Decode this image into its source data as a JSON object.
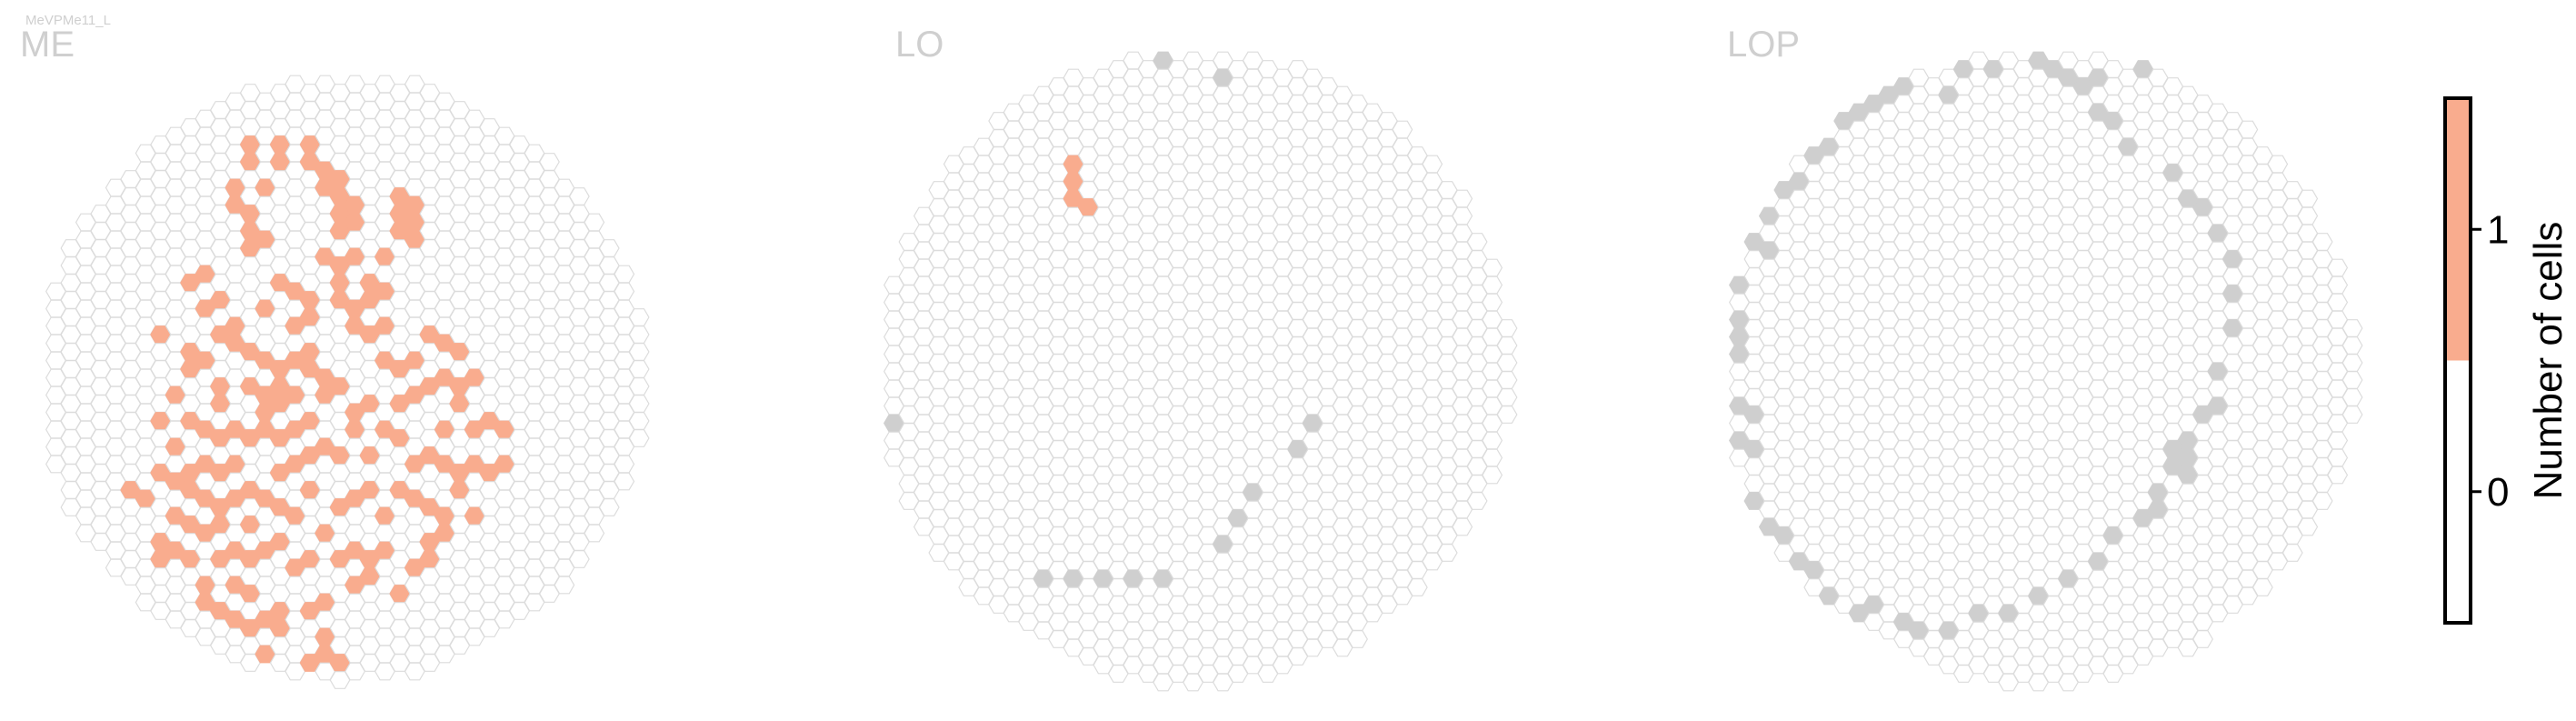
{
  "cell_type": "MeVPMe11_L",
  "colors": {
    "present": "#F9AC8E",
    "absent_fill": "#ffffff",
    "hex_outline": "#dcdcdc",
    "edge_column": "#cfcfcf",
    "title": "#cfcfcf",
    "colorbar_border": "#000000"
  },
  "chart_data": [
    {
      "type": "heatmap",
      "subtype": "hexagonal column map",
      "title": "ME",
      "lattice": "hex columns, offset by half step on alternating columns",
      "occupied_columns": [
        [
          14,
          4
        ],
        [
          14,
          5
        ],
        [
          16,
          4
        ],
        [
          16,
          5
        ],
        [
          13,
          6
        ],
        [
          15,
          6
        ],
        [
          13,
          7
        ],
        [
          14,
          8
        ],
        [
          14,
          9
        ],
        [
          15,
          9
        ],
        [
          14,
          10
        ],
        [
          18,
          4
        ],
        [
          18,
          5
        ],
        [
          19,
          5
        ],
        [
          19,
          6
        ],
        [
          20,
          6
        ],
        [
          20,
          7
        ],
        [
          21,
          7
        ],
        [
          20,
          8
        ],
        [
          21,
          8
        ],
        [
          20,
          9
        ],
        [
          21,
          10
        ],
        [
          24,
          7
        ],
        [
          25,
          7
        ],
        [
          24,
          8
        ],
        [
          25,
          8
        ],
        [
          24,
          9
        ],
        [
          25,
          9
        ],
        [
          23,
          10
        ],
        [
          19,
          10
        ],
        [
          20,
          11
        ],
        [
          20,
          12
        ],
        [
          20,
          13
        ],
        [
          21,
          13
        ],
        [
          21,
          14
        ],
        [
          22,
          12
        ],
        [
          22,
          13
        ],
        [
          23,
          12
        ],
        [
          23,
          14
        ],
        [
          10,
          12
        ],
        [
          11,
          11
        ],
        [
          11,
          13
        ],
        [
          12,
          13
        ],
        [
          13,
          14
        ],
        [
          15,
          13
        ],
        [
          16,
          12
        ],
        [
          17,
          12
        ],
        [
          18,
          13
        ],
        [
          17,
          14
        ],
        [
          18,
          14
        ],
        [
          8,
          15
        ],
        [
          10,
          16
        ],
        [
          11,
          16
        ],
        [
          12,
          15
        ],
        [
          13,
          15
        ],
        [
          14,
          16
        ],
        [
          15,
          16
        ],
        [
          16,
          17
        ],
        [
          17,
          16
        ],
        [
          18,
          16
        ],
        [
          18,
          17
        ],
        [
          19,
          17
        ],
        [
          9,
          18
        ],
        [
          10,
          17
        ],
        [
          12,
          18
        ],
        [
          14,
          18
        ],
        [
          15,
          18
        ],
        [
          16,
          18
        ],
        [
          17,
          18
        ],
        [
          15,
          19
        ],
        [
          16,
          19
        ],
        [
          19,
          18
        ],
        [
          20,
          18
        ],
        [
          22,
          15
        ],
        [
          23,
          16
        ],
        [
          24,
          17
        ],
        [
          25,
          16
        ],
        [
          26,
          15
        ],
        [
          27,
          15
        ],
        [
          28,
          16
        ],
        [
          27,
          17
        ],
        [
          28,
          18
        ],
        [
          29,
          17
        ],
        [
          28,
          19
        ],
        [
          25,
          18
        ],
        [
          26,
          18
        ],
        [
          24,
          19
        ],
        [
          27,
          20
        ],
        [
          29,
          20
        ],
        [
          30,
          20
        ],
        [
          31,
          20
        ],
        [
          21,
          19
        ],
        [
          22,
          19
        ],
        [
          23,
          20
        ],
        [
          21,
          20
        ],
        [
          8,
          20
        ],
        [
          9,
          21
        ],
        [
          10,
          20
        ],
        [
          11,
          20
        ],
        [
          12,
          19
        ],
        [
          12,
          21
        ],
        [
          13,
          20
        ],
        [
          13,
          22
        ],
        [
          14,
          21
        ],
        [
          15,
          20
        ],
        [
          16,
          21
        ],
        [
          17,
          20
        ],
        [
          18,
          20
        ],
        [
          19,
          21
        ],
        [
          17,
          22
        ],
        [
          18,
          22
        ],
        [
          20,
          22
        ],
        [
          22,
          22
        ],
        [
          24,
          21
        ],
        [
          25,
          22
        ],
        [
          26,
          22
        ],
        [
          27,
          22
        ],
        [
          28,
          23
        ],
        [
          29,
          22
        ],
        [
          30,
          23
        ],
        [
          31,
          22
        ],
        [
          6,
          24
        ],
        [
          7,
          24
        ],
        [
          8,
          23
        ],
        [
          9,
          23
        ],
        [
          10,
          23
        ],
        [
          11,
          22
        ],
        [
          11,
          24
        ],
        [
          9,
          25
        ],
        [
          10,
          24
        ],
        [
          10,
          26
        ],
        [
          11,
          26
        ],
        [
          12,
          25
        ],
        [
          12,
          23
        ],
        [
          13,
          24
        ],
        [
          14,
          24
        ],
        [
          15,
          24
        ],
        [
          16,
          23
        ],
        [
          16,
          25
        ],
        [
          17,
          25
        ],
        [
          18,
          24
        ],
        [
          19,
          26
        ],
        [
          20,
          25
        ],
        [
          21,
          24
        ],
        [
          22,
          24
        ],
        [
          23,
          25
        ],
        [
          24,
          24
        ],
        [
          25,
          24
        ],
        [
          26,
          25
        ],
        [
          27,
          25
        ],
        [
          28,
          24
        ],
        [
          29,
          25
        ],
        [
          27,
          26
        ],
        [
          8,
          27
        ],
        [
          8,
          28
        ],
        [
          9,
          27
        ],
        [
          10,
          28
        ],
        [
          11,
          29
        ],
        [
          12,
          26
        ],
        [
          12,
          28
        ],
        [
          13,
          27
        ],
        [
          14,
          26
        ],
        [
          14,
          28
        ],
        [
          15,
          27
        ],
        [
          16,
          27
        ],
        [
          17,
          28
        ],
        [
          18,
          28
        ],
        [
          20,
          28
        ],
        [
          21,
          27
        ],
        [
          21,
          29
        ],
        [
          22,
          28
        ],
        [
          22,
          29
        ],
        [
          23,
          27
        ],
        [
          25,
          28
        ],
        [
          26,
          27
        ],
        [
          26,
          28
        ],
        [
          24,
          30
        ],
        [
          11,
          30
        ],
        [
          12,
          31
        ],
        [
          13,
          29
        ],
        [
          13,
          31
        ],
        [
          14,
          30
        ],
        [
          14,
          32
        ],
        [
          15,
          31
        ],
        [
          16,
          31
        ],
        [
          18,
          31
        ],
        [
          19,
          30
        ],
        [
          19,
          32
        ],
        [
          19,
          33
        ],
        [
          20,
          34
        ],
        [
          15,
          33
        ],
        [
          16,
          32
        ],
        [
          18,
          34
        ]
      ],
      "occupied_value": 1,
      "gray_edge_columns": []
    },
    {
      "type": "heatmap",
      "subtype": "hexagonal column map",
      "title": "LO",
      "occupied_columns": [
        [
          13,
          6
        ],
        [
          13,
          7
        ],
        [
          13,
          8
        ],
        [
          14,
          9
        ]
      ],
      "occupied_value": 1,
      "gray_edge_columns": [
        [
          19,
          0
        ],
        [
          23,
          1
        ],
        [
          7,
          4
        ],
        [
          6,
          5
        ],
        [
          2,
          9
        ],
        [
          0,
          15
        ],
        [
          1,
          21
        ],
        [
          29,
          21
        ],
        [
          28,
          23
        ],
        [
          25,
          25
        ],
        [
          24,
          27
        ],
        [
          23,
          28
        ],
        [
          11,
          30
        ],
        [
          13,
          30
        ],
        [
          15,
          30
        ],
        [
          17,
          30
        ],
        [
          19,
          30
        ]
      ]
    },
    {
      "type": "heatmap",
      "subtype": "hexagonal column map",
      "title": "LOP",
      "occupied_columns": [],
      "occupied_value": 1,
      "gray_edge_columns": [
        [
          20,
          0
        ],
        [
          25,
          1
        ],
        [
          27,
          0
        ],
        [
          28,
          1
        ],
        [
          14,
          1
        ],
        [
          15,
          2
        ],
        [
          9,
          3
        ],
        [
          8,
          4
        ],
        [
          7,
          5
        ],
        [
          6,
          6
        ],
        [
          5,
          7
        ],
        [
          4,
          8
        ],
        [
          3,
          9
        ],
        [
          2,
          10
        ],
        [
          1,
          12
        ],
        [
          1,
          13
        ],
        [
          1,
          15
        ],
        [
          0,
          18
        ],
        [
          1,
          20
        ],
        [
          1,
          22
        ],
        [
          1,
          24
        ],
        [
          2,
          26
        ],
        [
          3,
          27
        ],
        [
          4,
          28
        ],
        [
          5,
          29
        ],
        [
          6,
          30
        ],
        [
          7,
          31
        ],
        [
          9,
          32
        ],
        [
          10,
          32
        ],
        [
          12,
          33
        ],
        [
          13,
          33
        ],
        [
          15,
          33
        ],
        [
          17,
          32
        ],
        [
          19,
          32
        ],
        [
          21,
          31
        ],
        [
          23,
          30
        ],
        [
          25,
          29
        ],
        [
          26,
          28
        ],
        [
          28,
          27
        ],
        [
          29,
          26
        ],
        [
          31,
          24
        ],
        [
          31,
          22
        ],
        [
          33,
          20
        ],
        [
          33,
          18
        ],
        [
          34,
          16
        ],
        [
          34,
          14
        ],
        [
          34,
          12
        ],
        [
          33,
          10
        ],
        [
          32,
          9
        ],
        [
          31,
          8
        ],
        [
          30,
          7
        ],
        [
          27,
          5
        ],
        [
          26,
          4
        ],
        [
          25,
          3
        ],
        [
          24,
          2
        ],
        [
          23,
          1
        ],
        [
          22,
          1
        ],
        [
          21,
          0
        ],
        [
          18,
          1
        ],
        [
          16,
          1
        ],
        [
          2,
          23
        ],
        [
          2,
          21
        ],
        [
          1,
          17
        ],
        [
          1,
          16
        ],
        [
          3,
          11
        ],
        [
          2,
          11
        ],
        [
          10,
          3
        ],
        [
          11,
          2
        ],
        [
          12,
          2
        ],
        [
          29,
          25
        ],
        [
          30,
          23
        ],
        [
          30,
          24
        ],
        [
          31,
          23
        ],
        [
          32,
          21
        ]
      ]
    }
  ],
  "colorbar": {
    "label": "Number of cells",
    "ticks": [
      "1",
      "0"
    ],
    "tick_values": [
      1,
      0
    ],
    "range": [
      -0.5,
      1.5
    ]
  }
}
